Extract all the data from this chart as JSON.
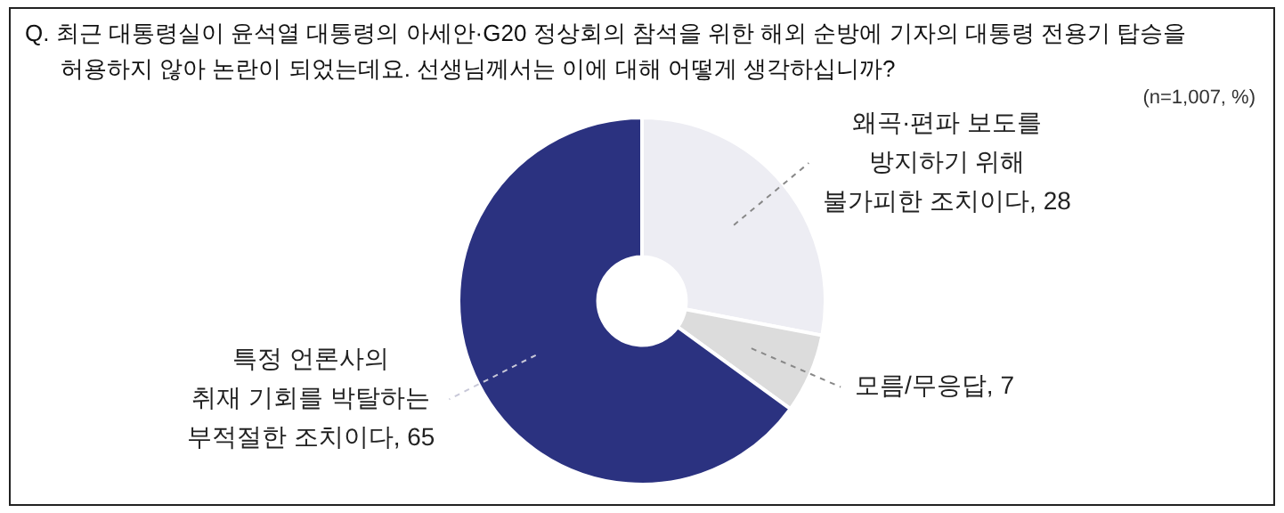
{
  "chart_data": {
    "type": "donut",
    "title": "Q. 최근 대통령실이 윤석열 대통령의 아세안·G20 정상회의 참석을 위한 해외 순방에 기자의 대통령 전용기 탑승을 허용하지 않아 논란이 되었는데요. 선생님께서는 이에 대해 어떻게 생각하십니까?",
    "annotations": [
      "(n=1,007, %)"
    ],
    "categories": [
      "왜곡·편파 보도를\n방지하기 위해\n불가피한 조치이다",
      "모름/무응답",
      "특정 언론사의\n취재 기회를 박탈하는\n부적절한 조치이다"
    ],
    "values": [
      28,
      7,
      65
    ],
    "colors": [
      "#ededf3",
      "#dcdcdc",
      "#2b3280"
    ],
    "value_labels": [
      ", 28",
      ", 7",
      ", 65"
    ],
    "legend": false
  }
}
